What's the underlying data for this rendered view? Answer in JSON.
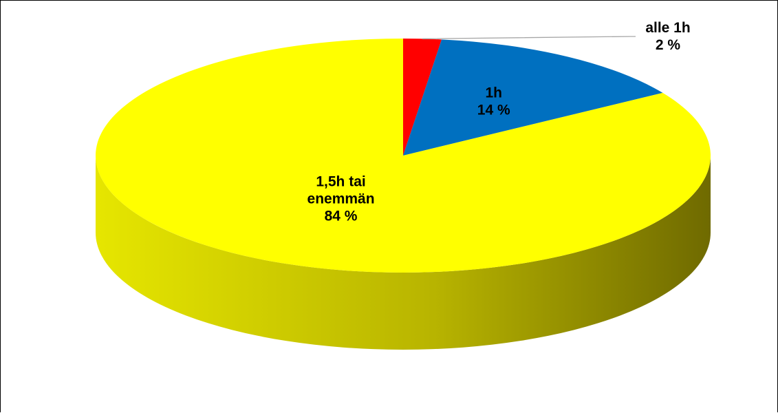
{
  "chart_data": {
    "type": "pie",
    "title": "",
    "slices": [
      {
        "category": "alle 1h",
        "value": 2,
        "value_label": "2 %",
        "color": "#ff0000",
        "label_lines": [
          "alle 1h"
        ]
      },
      {
        "category": "1h",
        "value": 14,
        "value_label": "14 %",
        "color": "#0070c0",
        "label_lines": [
          "1h"
        ]
      },
      {
        "category": "1,5h tai enemmän",
        "value": 84,
        "value_label": "84 %",
        "color": "#ffff00",
        "label_lines": [
          "1,5h tai",
          "enemmän"
        ]
      }
    ],
    "legend": "none",
    "style": "3d"
  }
}
